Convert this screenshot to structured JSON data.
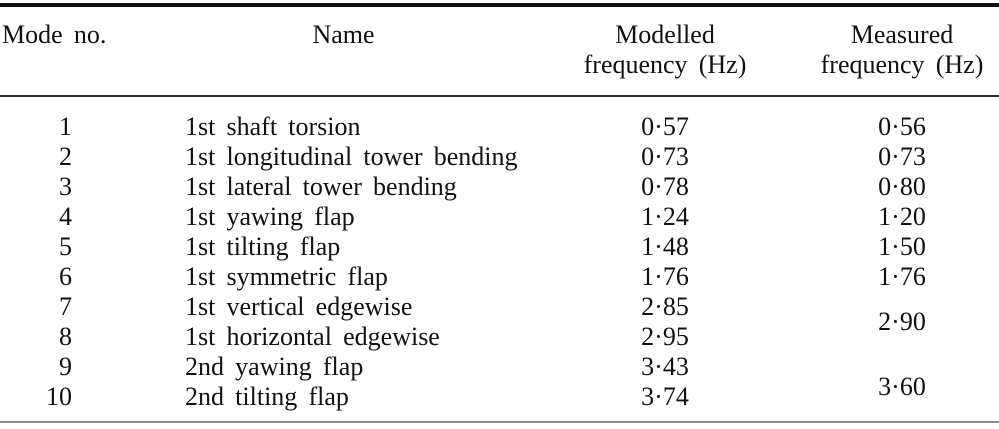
{
  "table": {
    "headers": {
      "mode": "Mode no.",
      "name": "Name",
      "modelled_line1": "Modelled",
      "modelled_line2": "frequency (Hz)",
      "measured_line1": "Measured",
      "measured_line2": "frequency (Hz)"
    },
    "rows": [
      {
        "mode": "1",
        "name": "1st shaft torsion",
        "modelled": "0·57",
        "measured": "0·56"
      },
      {
        "mode": "2",
        "name": "1st longitudinal tower bending",
        "modelled": "0·73",
        "measured": "0·73"
      },
      {
        "mode": "3",
        "name": "1st lateral tower bending",
        "modelled": "0·78",
        "measured": "0·80"
      },
      {
        "mode": "4",
        "name": "1st yawing flap",
        "modelled": "1·24",
        "measured": "1·20"
      },
      {
        "mode": "5",
        "name": "1st tilting flap",
        "modelled": "1·48",
        "measured": "1·50"
      },
      {
        "mode": "6",
        "name": "1st symmetric flap",
        "modelled": "1·76",
        "measured": "1·76"
      },
      {
        "mode": "7",
        "name": "1st vertical edgewise",
        "modelled": "2·85",
        "measured": "2·90",
        "measured_rowspan": 2
      },
      {
        "mode": "8",
        "name": "1st horizontal edgewise",
        "modelled": "2·95",
        "measured": null
      },
      {
        "mode": "9",
        "name": "2nd yawing flap",
        "modelled": "3·43",
        "measured": "3·60",
        "measured_rowspan": 2
      },
      {
        "mode": "10",
        "name": "2nd tilting flap",
        "modelled": "3·74",
        "measured": null
      }
    ]
  }
}
